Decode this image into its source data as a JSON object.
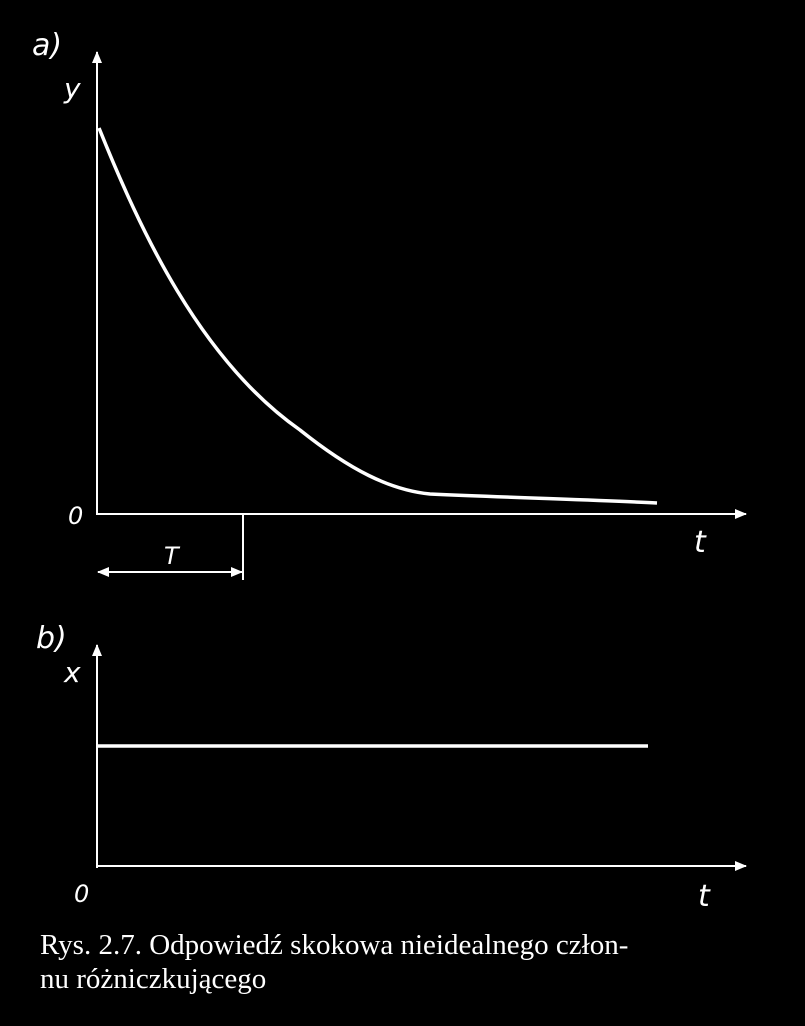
{
  "panel_a": {
    "label": "a)",
    "y_axis": "y",
    "x_axis": "t",
    "origin": "0",
    "time_constant": "T"
  },
  "panel_b": {
    "label": "b)",
    "y_axis": "x",
    "x_axis": "t",
    "origin": "0"
  },
  "caption": {
    "line1": "Rys.  2.7.  Odpowiedź skokowa nieidealnego człon-",
    "line2": "nu różniczkującego"
  },
  "colors": {
    "background": "#000000",
    "ink": "#ffffff"
  }
}
